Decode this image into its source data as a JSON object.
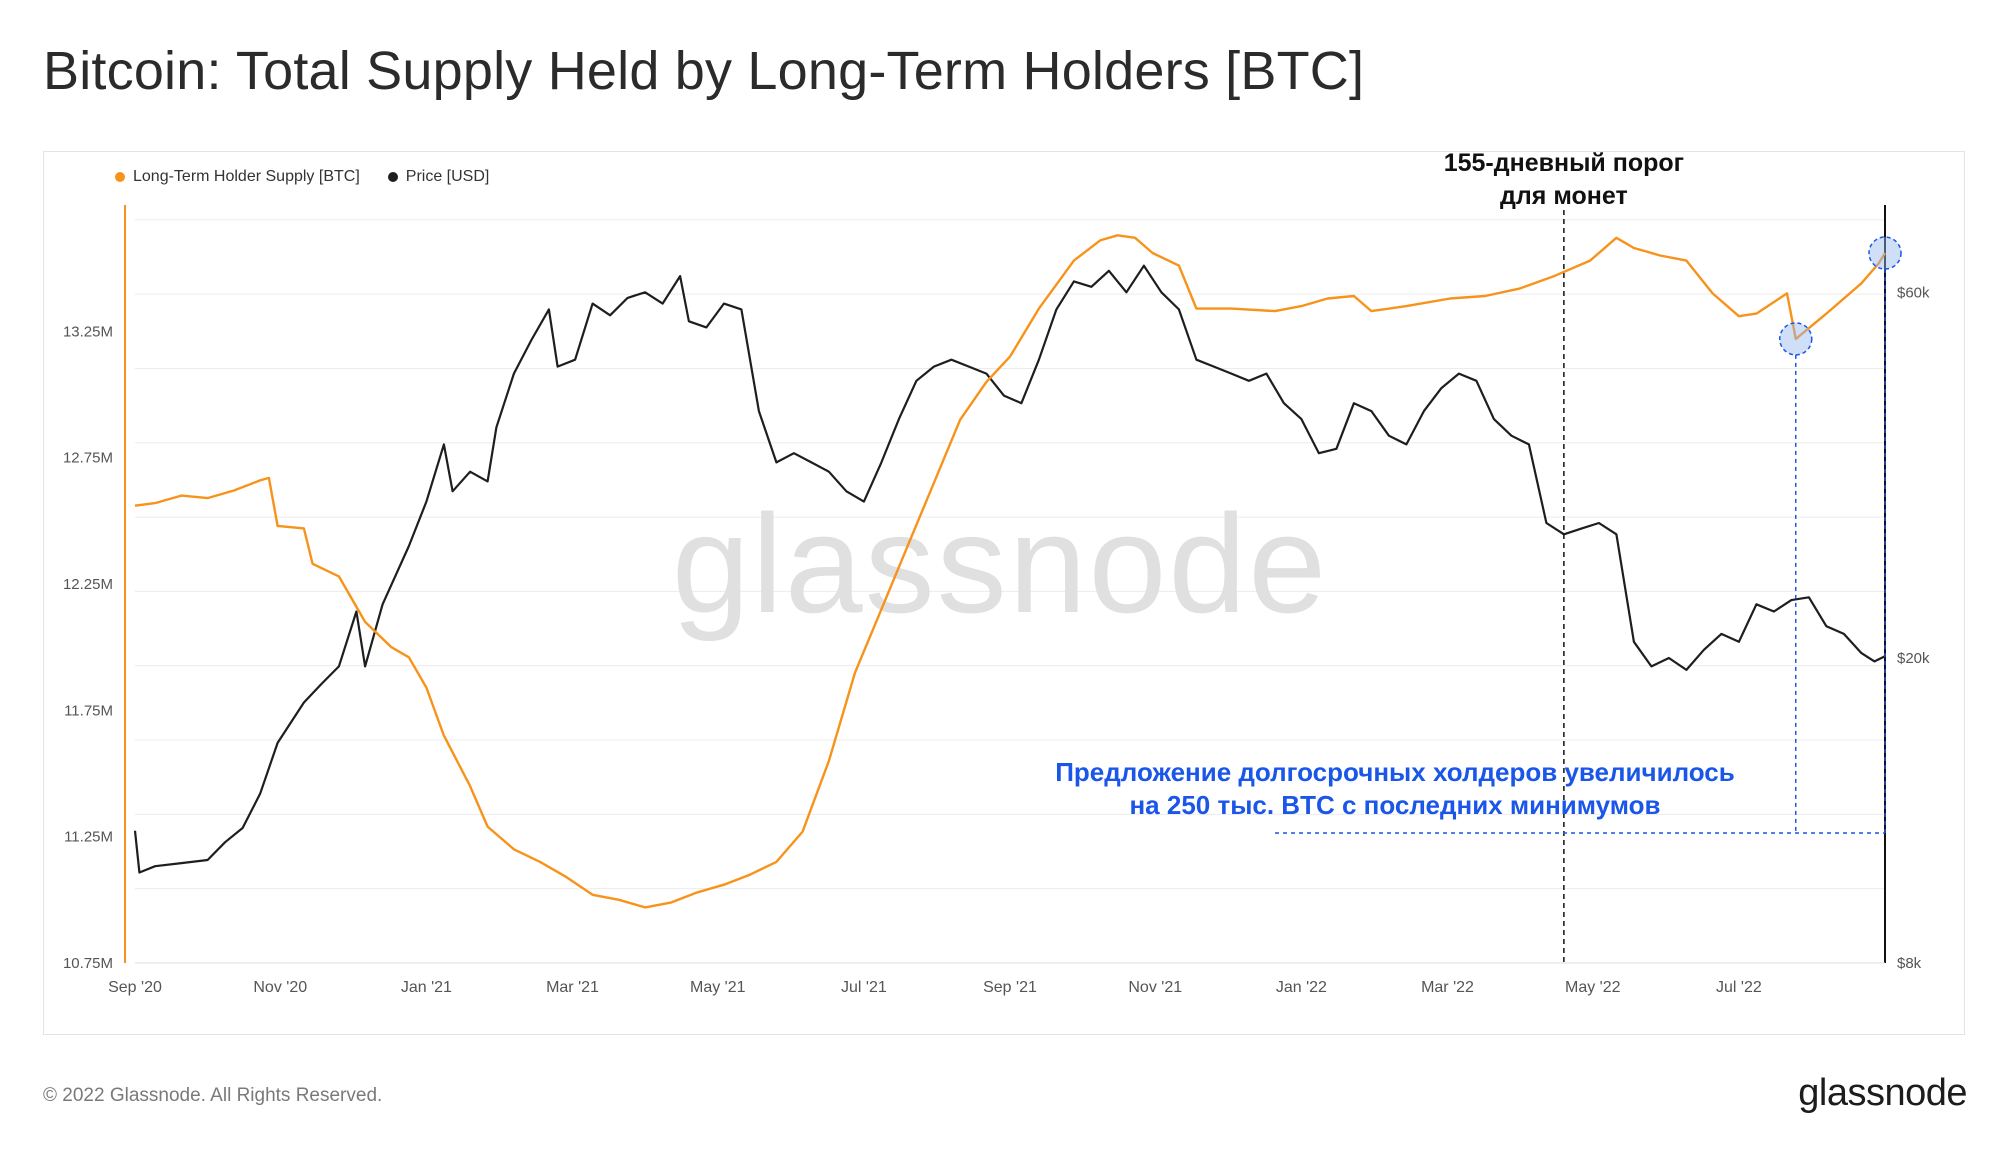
{
  "title": "Bitcoin: Total Supply Held by Long-Term Holders [BTC]",
  "footer": {
    "copyright": "© 2022 Glassnode. All Rights Reserved.",
    "logo": "glassnode"
  },
  "watermark": "glassnode",
  "colors": {
    "supply": "#f7931a",
    "price": "#1e1e1e",
    "annotation": "#1a56e8",
    "grid": "#ececec"
  },
  "legend": [
    {
      "label": "Long-Term Holder Supply [BTC]",
      "color": "#f7931a"
    },
    {
      "label": "Price [USD]",
      "color": "#1e1e1e"
    }
  ],
  "annotations": {
    "threshold": {
      "line1": "155-дневный  порог",
      "line2": "для монет",
      "date": 2022.3
    },
    "increase": {
      "line1": "Предложение долгосрочных холдеров увеличилось",
      "line2": "на 250 тыс. BTC с последних минимумов"
    }
  },
  "chart_data": {
    "type": "line",
    "title": "Bitcoin: Total Supply Held by Long-Term Holders [BTC]",
    "x_range": [
      2020.667,
      2022.667
    ],
    "x_ticks": [
      {
        "label": "Sep '20",
        "t": 2020.667
      },
      {
        "label": "Nov '20",
        "t": 2020.833
      },
      {
        "label": "Jan '21",
        "t": 2021.0
      },
      {
        "label": "Mar '21",
        "t": 2021.167
      },
      {
        "label": "May '21",
        "t": 2021.333
      },
      {
        "label": "Jul '21",
        "t": 2021.5
      },
      {
        "label": "Sep '21",
        "t": 2021.667
      },
      {
        "label": "Nov '21",
        "t": 2021.833
      },
      {
        "label": "Jan '22",
        "t": 2022.0
      },
      {
        "label": "Mar '22",
        "t": 2022.167
      },
      {
        "label": "May '22",
        "t": 2022.333
      },
      {
        "label": "Jul '22",
        "t": 2022.5
      }
    ],
    "y_left": {
      "label": "Long-Term Holder Supply [BTC]",
      "min": 10750000,
      "max": 13750000,
      "ticks": [
        {
          "label": "10.75M",
          "v": 10750000
        },
        {
          "label": "11.25M",
          "v": 11250000
        },
        {
          "label": "11.75M",
          "v": 11750000
        },
        {
          "label": "12.25M",
          "v": 12250000
        },
        {
          "label": "12.75M",
          "v": 12750000
        },
        {
          "label": "13.25M",
          "v": 13250000
        }
      ]
    },
    "y_right": {
      "label": "Price [USD]",
      "scale": "log",
      "min": 8000,
      "max": 78000,
      "ticks": [
        {
          "label": "$8k",
          "v": 8000
        },
        {
          "label": "$20k",
          "v": 20000
        },
        {
          "label": "$60k",
          "v": 60000
        }
      ]
    },
    "series": [
      {
        "name": "Long-Term Holder Supply [BTC]",
        "axis": "left",
        "points": [
          [
            2020.667,
            12560000
          ],
          [
            2020.69,
            12570000
          ],
          [
            2020.72,
            12600000
          ],
          [
            2020.75,
            12590000
          ],
          [
            2020.78,
            12620000
          ],
          [
            2020.81,
            12660000
          ],
          [
            2020.82,
            12670000
          ],
          [
            2020.83,
            12480000
          ],
          [
            2020.86,
            12470000
          ],
          [
            2020.87,
            12330000
          ],
          [
            2020.9,
            12280000
          ],
          [
            2020.93,
            12100000
          ],
          [
            2020.96,
            12000000
          ],
          [
            2020.98,
            11960000
          ],
          [
            2021.0,
            11840000
          ],
          [
            2021.02,
            11650000
          ],
          [
            2021.05,
            11450000
          ],
          [
            2021.07,
            11290000
          ],
          [
            2021.1,
            11200000
          ],
          [
            2021.13,
            11150000
          ],
          [
            2021.16,
            11090000
          ],
          [
            2021.19,
            11020000
          ],
          [
            2021.22,
            11000000
          ],
          [
            2021.25,
            10970000
          ],
          [
            2021.28,
            10990000
          ],
          [
            2021.31,
            11030000
          ],
          [
            2021.34,
            11060000
          ],
          [
            2021.37,
            11100000
          ],
          [
            2021.4,
            11150000
          ],
          [
            2021.43,
            11270000
          ],
          [
            2021.46,
            11550000
          ],
          [
            2021.49,
            11900000
          ],
          [
            2021.52,
            12150000
          ],
          [
            2021.55,
            12400000
          ],
          [
            2021.58,
            12650000
          ],
          [
            2021.61,
            12900000
          ],
          [
            2021.64,
            13050000
          ],
          [
            2021.667,
            13150000
          ],
          [
            2021.7,
            13340000
          ],
          [
            2021.74,
            13530000
          ],
          [
            2021.77,
            13610000
          ],
          [
            2021.79,
            13630000
          ],
          [
            2021.81,
            13620000
          ],
          [
            2021.83,
            13560000
          ],
          [
            2021.86,
            13510000
          ],
          [
            2021.88,
            13340000
          ],
          [
            2021.92,
            13340000
          ],
          [
            2021.97,
            13330000
          ],
          [
            2022.0,
            13350000
          ],
          [
            2022.03,
            13380000
          ],
          [
            2022.06,
            13390000
          ],
          [
            2022.08,
            13330000
          ],
          [
            2022.12,
            13350000
          ],
          [
            2022.17,
            13380000
          ],
          [
            2022.21,
            13390000
          ],
          [
            2022.25,
            13420000
          ],
          [
            2022.29,
            13470000
          ],
          [
            2022.33,
            13530000
          ],
          [
            2022.36,
            13620000
          ],
          [
            2022.38,
            13580000
          ],
          [
            2022.41,
            13550000
          ],
          [
            2022.44,
            13530000
          ],
          [
            2022.47,
            13400000
          ],
          [
            2022.5,
            13310000
          ],
          [
            2022.52,
            13320000
          ],
          [
            2022.555,
            13400000
          ],
          [
            2022.565,
            13220000
          ],
          [
            2022.6,
            13320000
          ],
          [
            2022.64,
            13440000
          ],
          [
            2022.66,
            13520000
          ],
          [
            2022.667,
            13560000
          ]
        ]
      },
      {
        "name": "Price [USD]",
        "axis": "right",
        "points": [
          [
            2020.667,
            11900
          ],
          [
            2020.672,
            10500
          ],
          [
            2020.69,
            10700
          ],
          [
            2020.72,
            10800
          ],
          [
            2020.75,
            10900
          ],
          [
            2020.77,
            11500
          ],
          [
            2020.79,
            12000
          ],
          [
            2020.81,
            13300
          ],
          [
            2020.83,
            15500
          ],
          [
            2020.86,
            17500
          ],
          [
            2020.88,
            18500
          ],
          [
            2020.9,
            19500
          ],
          [
            2020.92,
            23000
          ],
          [
            2020.93,
            19500
          ],
          [
            2020.95,
            23500
          ],
          [
            2020.98,
            28000
          ],
          [
            2021.0,
            32000
          ],
          [
            2021.02,
            38000
          ],
          [
            2021.03,
            33000
          ],
          [
            2021.05,
            35000
          ],
          [
            2021.07,
            34000
          ],
          [
            2021.08,
            40000
          ],
          [
            2021.1,
            47000
          ],
          [
            2021.12,
            52000
          ],
          [
            2021.14,
            57000
          ],
          [
            2021.15,
            48000
          ],
          [
            2021.17,
            49000
          ],
          [
            2021.19,
            58000
          ],
          [
            2021.21,
            56000
          ],
          [
            2021.23,
            59000
          ],
          [
            2021.25,
            60000
          ],
          [
            2021.27,
            58000
          ],
          [
            2021.29,
            63000
          ],
          [
            2021.3,
            55000
          ],
          [
            2021.32,
            54000
          ],
          [
            2021.34,
            58000
          ],
          [
            2021.36,
            57000
          ],
          [
            2021.38,
            42000
          ],
          [
            2021.4,
            36000
          ],
          [
            2021.42,
            37000
          ],
          [
            2021.44,
            36000
          ],
          [
            2021.46,
            35000
          ],
          [
            2021.48,
            33000
          ],
          [
            2021.5,
            32000
          ],
          [
            2021.52,
            36000
          ],
          [
            2021.54,
            41000
          ],
          [
            2021.56,
            46000
          ],
          [
            2021.58,
            48000
          ],
          [
            2021.6,
            49000
          ],
          [
            2021.62,
            48000
          ],
          [
            2021.64,
            47000
          ],
          [
            2021.66,
            44000
          ],
          [
            2021.68,
            43000
          ],
          [
            2021.7,
            49000
          ],
          [
            2021.72,
            57000
          ],
          [
            2021.74,
            62000
          ],
          [
            2021.76,
            61000
          ],
          [
            2021.78,
            64000
          ],
          [
            2021.8,
            60000
          ],
          [
            2021.82,
            65000
          ],
          [
            2021.84,
            60000
          ],
          [
            2021.86,
            57000
          ],
          [
            2021.88,
            49000
          ],
          [
            2021.9,
            48000
          ],
          [
            2021.92,
            47000
          ],
          [
            2021.94,
            46000
          ],
          [
            2021.96,
            47000
          ],
          [
            2021.98,
            43000
          ],
          [
            2022.0,
            41000
          ],
          [
            2022.02,
            37000
          ],
          [
            2022.04,
            37500
          ],
          [
            2022.06,
            43000
          ],
          [
            2022.08,
            42000
          ],
          [
            2022.1,
            39000
          ],
          [
            2022.12,
            38000
          ],
          [
            2022.14,
            42000
          ],
          [
            2022.16,
            45000
          ],
          [
            2022.18,
            47000
          ],
          [
            2022.2,
            46000
          ],
          [
            2022.22,
            41000
          ],
          [
            2022.24,
            39000
          ],
          [
            2022.26,
            38000
          ],
          [
            2022.28,
            30000
          ],
          [
            2022.3,
            29000
          ],
          [
            2022.32,
            29500
          ],
          [
            2022.34,
            30000
          ],
          [
            2022.36,
            29000
          ],
          [
            2022.38,
            21000
          ],
          [
            2022.4,
            19500
          ],
          [
            2022.42,
            20000
          ],
          [
            2022.44,
            19300
          ],
          [
            2022.46,
            20500
          ],
          [
            2022.48,
            21500
          ],
          [
            2022.5,
            21000
          ],
          [
            2022.52,
            23500
          ],
          [
            2022.54,
            23000
          ],
          [
            2022.56,
            23800
          ],
          [
            2022.58,
            24000
          ],
          [
            2022.6,
            22000
          ],
          [
            2022.62,
            21500
          ],
          [
            2022.64,
            20300
          ],
          [
            2022.655,
            19800
          ],
          [
            2022.667,
            20100
          ]
        ]
      }
    ]
  }
}
